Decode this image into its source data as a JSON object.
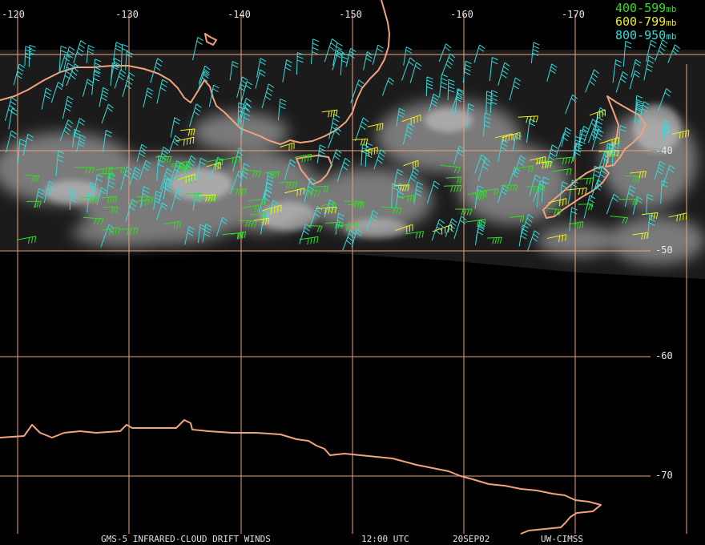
{
  "map": {
    "lon_labels": [
      "-120",
      "-130",
      "-140",
      "-150",
      "-160",
      "-170"
    ],
    "lat_labels": [
      "-40",
      "-50",
      "-60",
      "-70"
    ],
    "legend": [
      {
        "range": "400-599",
        "unit": "mb",
        "color": "#33dd22"
      },
      {
        "range": "600-799",
        "unit": "mb",
        "color": "#eeee22"
      },
      {
        "range": "800-950",
        "unit": "mb",
        "color": "#33dddd"
      }
    ],
    "footer": {
      "product": "GMS-5 INFRARED-CLOUD DRIFT WINDS",
      "time": "12:00 UTC",
      "date": "20SEP02",
      "source": "UW-CIMSS"
    },
    "colors": {
      "grid": "#f0a080",
      "coast": "#f2a27e",
      "background": "#000000"
    }
  }
}
